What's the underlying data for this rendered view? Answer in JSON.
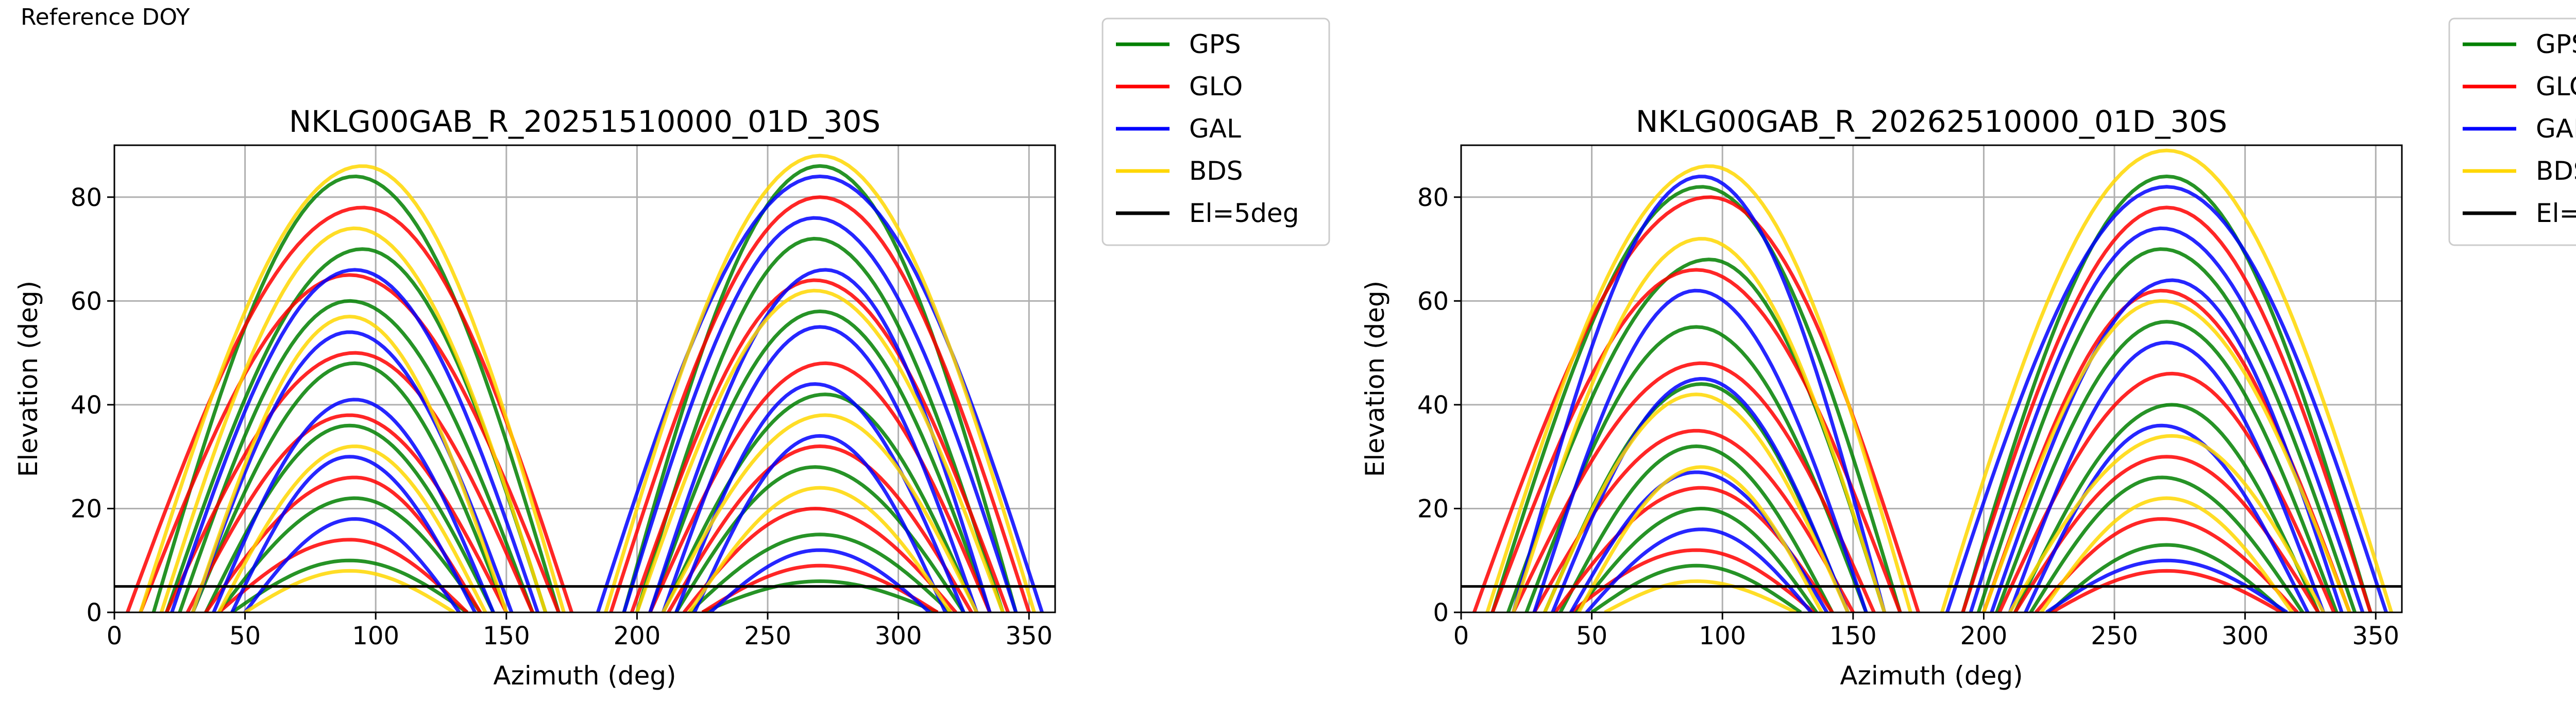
{
  "figure": {
    "note": "Reference DOY"
  },
  "legend": {
    "items": [
      {
        "label": "GPS",
        "color": "#008000"
      },
      {
        "label": "GLO",
        "color": "#ff0000"
      },
      {
        "label": "GAL",
        "color": "#0000ff"
      },
      {
        "label": "BDS",
        "color": "#ffd700"
      },
      {
        "label": "El=5deg",
        "color": "#000000"
      }
    ]
  },
  "chart_data": [
    {
      "type": "line",
      "title": "NKLG00GAB_R_20251510000_01D_30S",
      "xlabel": "Azimuth (deg)",
      "ylabel": "Elevation (deg)",
      "xlim": [
        0,
        360
      ],
      "ylim": [
        0,
        90
      ],
      "xticks": [
        0,
        50,
        100,
        150,
        200,
        250,
        300,
        350
      ],
      "yticks": [
        0,
        20,
        40,
        60,
        80
      ],
      "grid": true,
      "legend_position": "outside-right-top",
      "reference_line": {
        "name": "El=5deg",
        "y": 5
      },
      "series": [
        {
          "name": "GPS",
          "color": "#008000",
          "arcs": [
            {
              "az0": 15,
              "az1": 170,
              "peak_az": 92,
              "peak_el": 84
            },
            {
              "az0": 20,
              "az1": 165,
              "peak_az": 95,
              "peak_el": 70
            },
            {
              "az0": 25,
              "az1": 160,
              "peak_az": 90,
              "peak_el": 60
            },
            {
              "az0": 30,
              "az1": 150,
              "peak_az": 92,
              "peak_el": 48
            },
            {
              "az0": 35,
              "az1": 145,
              "peak_az": 90,
              "peak_el": 36
            },
            {
              "az0": 40,
              "az1": 140,
              "peak_az": 92,
              "peak_el": 22
            },
            {
              "az0": 45,
              "az1": 135,
              "peak_az": 90,
              "peak_el": 10
            },
            {
              "az0": 195,
              "az1": 345,
              "peak_az": 270,
              "peak_el": 86
            },
            {
              "az0": 200,
              "az1": 340,
              "peak_az": 268,
              "peak_el": 72
            },
            {
              "az0": 205,
              "az1": 335,
              "peak_az": 270,
              "peak_el": 58
            },
            {
              "az0": 210,
              "az1": 330,
              "peak_az": 272,
              "peak_el": 42
            },
            {
              "az0": 215,
              "az1": 325,
              "peak_az": 268,
              "peak_el": 28
            },
            {
              "az0": 220,
              "az1": 320,
              "peak_az": 270,
              "peak_el": 15
            },
            {
              "az0": 225,
              "az1": 315,
              "peak_az": 270,
              "peak_el": 6
            }
          ]
        },
        {
          "name": "GLO",
          "color": "#ff0000",
          "arcs": [
            {
              "az0": 5,
              "az1": 175,
              "peak_az": 95,
              "peak_el": 78
            },
            {
              "az0": 10,
              "az1": 170,
              "peak_az": 90,
              "peak_el": 65
            },
            {
              "az0": 20,
              "az1": 160,
              "peak_az": 92,
              "peak_el": 50
            },
            {
              "az0": 28,
              "az1": 150,
              "peak_az": 90,
              "peak_el": 38
            },
            {
              "az0": 35,
              "az1": 140,
              "peak_az": 92,
              "peak_el": 26
            },
            {
              "az0": 40,
              "az1": 135,
              "peak_az": 90,
              "peak_el": 14
            },
            {
              "az0": 190,
              "az1": 350,
              "peak_az": 270,
              "peak_el": 80
            },
            {
              "az0": 198,
              "az1": 342,
              "peak_az": 268,
              "peak_el": 64
            },
            {
              "az0": 205,
              "az1": 335,
              "peak_az": 272,
              "peak_el": 48
            },
            {
              "az0": 212,
              "az1": 328,
              "peak_az": 270,
              "peak_el": 32
            },
            {
              "az0": 218,
              "az1": 322,
              "peak_az": 268,
              "peak_el": 20
            },
            {
              "az0": 225,
              "az1": 315,
              "peak_az": 270,
              "peak_el": 9
            }
          ]
        },
        {
          "name": "GAL",
          "color": "#0000ff",
          "arcs": [
            {
              "az0": 22,
              "az1": 162,
              "peak_az": 92,
              "peak_el": 66
            },
            {
              "az0": 30,
              "az1": 152,
              "peak_az": 90,
              "peak_el": 54
            },
            {
              "az0": 38,
              "az1": 145,
              "peak_az": 92,
              "peak_el": 41
            },
            {
              "az0": 45,
              "az1": 138,
              "peak_az": 90,
              "peak_el": 30
            },
            {
              "az0": 50,
              "az1": 132,
              "peak_az": 92,
              "peak_el": 18
            },
            {
              "az0": 185,
              "az1": 355,
              "peak_az": 270,
              "peak_el": 84
            },
            {
              "az0": 195,
              "az1": 345,
              "peak_az": 268,
              "peak_el": 76
            },
            {
              "az0": 205,
              "az1": 335,
              "peak_az": 272,
              "peak_el": 66
            },
            {
              "az0": 210,
              "az1": 330,
              "peak_az": 270,
              "peak_el": 55
            },
            {
              "az0": 215,
              "az1": 325,
              "peak_az": 268,
              "peak_el": 44
            },
            {
              "az0": 222,
              "az1": 318,
              "peak_az": 270,
              "peak_el": 34
            },
            {
              "az0": 228,
              "az1": 312,
              "peak_az": 270,
              "peak_el": 12
            }
          ]
        },
        {
          "name": "BDS",
          "color": "#ffd700",
          "arcs": [
            {
              "az0": 10,
              "az1": 172,
              "peak_az": 95,
              "peak_el": 86
            },
            {
              "az0": 18,
              "az1": 165,
              "peak_az": 92,
              "peak_el": 74
            },
            {
              "az0": 30,
              "az1": 150,
              "peak_az": 90,
              "peak_el": 57
            },
            {
              "az0": 40,
              "az1": 142,
              "peak_az": 92,
              "peak_el": 32
            },
            {
              "az0": 50,
              "az1": 130,
              "peak_az": 90,
              "peak_el": 8
            },
            {
              "az0": 188,
              "az1": 352,
              "peak_az": 270,
              "peak_el": 88
            },
            {
              "az0": 200,
              "az1": 340,
              "peak_az": 268,
              "peak_el": 62
            },
            {
              "az0": 210,
              "az1": 330,
              "peak_az": 272,
              "peak_el": 38
            },
            {
              "az0": 220,
              "az1": 320,
              "peak_az": 270,
              "peak_el": 24
            }
          ]
        }
      ]
    },
    {
      "type": "line",
      "title": "NKLG00GAB_R_20262510000_01D_30S",
      "xlabel": "Azimuth (deg)",
      "ylabel": "Elevation (deg)",
      "xlim": [
        0,
        360
      ],
      "ylim": [
        0,
        90
      ],
      "xticks": [
        0,
        50,
        100,
        150,
        200,
        250,
        300,
        350
      ],
      "yticks": [
        0,
        20,
        40,
        60,
        80
      ],
      "grid": true,
      "legend_position": "outside-right-top",
      "reference_line": {
        "name": "El=5deg",
        "y": 5
      },
      "series": [
        {
          "name": "GPS",
          "color": "#008000",
          "arcs": [
            {
              "az0": 12,
              "az1": 168,
              "peak_az": 92,
              "peak_el": 82
            },
            {
              "az0": 18,
              "az1": 162,
              "peak_az": 95,
              "peak_el": 68
            },
            {
              "az0": 25,
              "az1": 155,
              "peak_az": 90,
              "peak_el": 55
            },
            {
              "az0": 32,
              "az1": 148,
              "peak_az": 92,
              "peak_el": 44
            },
            {
              "az0": 38,
              "az1": 142,
              "peak_az": 90,
              "peak_el": 32
            },
            {
              "az0": 44,
              "az1": 136,
              "peak_az": 92,
              "peak_el": 20
            },
            {
              "az0": 50,
              "az1": 130,
              "peak_az": 90,
              "peak_el": 9
            },
            {
              "az0": 192,
              "az1": 348,
              "peak_az": 270,
              "peak_el": 84
            },
            {
              "az0": 198,
              "az1": 342,
              "peak_az": 268,
              "peak_el": 70
            },
            {
              "az0": 205,
              "az1": 335,
              "peak_az": 270,
              "peak_el": 56
            },
            {
              "az0": 212,
              "az1": 328,
              "peak_az": 272,
              "peak_el": 40
            },
            {
              "az0": 218,
              "az1": 322,
              "peak_az": 268,
              "peak_el": 26
            },
            {
              "az0": 225,
              "az1": 315,
              "peak_az": 270,
              "peak_el": 13
            }
          ]
        },
        {
          "name": "GLO",
          "color": "#ff0000",
          "arcs": [
            {
              "az0": 5,
              "az1": 175,
              "peak_az": 95,
              "peak_el": 80
            },
            {
              "az0": 12,
              "az1": 168,
              "peak_az": 90,
              "peak_el": 66
            },
            {
              "az0": 20,
              "az1": 158,
              "peak_az": 92,
              "peak_el": 48
            },
            {
              "az0": 28,
              "az1": 150,
              "peak_az": 90,
              "peak_el": 35
            },
            {
              "az0": 36,
              "az1": 142,
              "peak_az": 92,
              "peak_el": 24
            },
            {
              "az0": 42,
              "az1": 135,
              "peak_az": 90,
              "peak_el": 12
            },
            {
              "az0": 192,
              "az1": 348,
              "peak_az": 270,
              "peak_el": 78
            },
            {
              "az0": 200,
              "az1": 340,
              "peak_az": 268,
              "peak_el": 62
            },
            {
              "az0": 206,
              "az1": 334,
              "peak_az": 272,
              "peak_el": 46
            },
            {
              "az0": 212,
              "az1": 328,
              "peak_az": 270,
              "peak_el": 30
            },
            {
              "az0": 220,
              "az1": 320,
              "peak_az": 268,
              "peak_el": 18
            },
            {
              "az0": 226,
              "az1": 314,
              "peak_az": 270,
              "peak_el": 8
            }
          ]
        },
        {
          "name": "GAL",
          "color": "#0000ff",
          "arcs": [
            {
              "az0": 20,
              "az1": 162,
              "peak_az": 92,
              "peak_el": 84
            },
            {
              "az0": 28,
              "az1": 155,
              "peak_az": 90,
              "peak_el": 62
            },
            {
              "az0": 35,
              "az1": 148,
              "peak_az": 92,
              "peak_el": 45
            },
            {
              "az0": 42,
              "az1": 140,
              "peak_az": 90,
              "peak_el": 27
            },
            {
              "az0": 48,
              "az1": 134,
              "peak_az": 92,
              "peak_el": 16
            },
            {
              "az0": 186,
              "az1": 354,
              "peak_az": 270,
              "peak_el": 82
            },
            {
              "az0": 195,
              "az1": 345,
              "peak_az": 268,
              "peak_el": 74
            },
            {
              "az0": 203,
              "az1": 337,
              "peak_az": 272,
              "peak_el": 64
            },
            {
              "az0": 210,
              "az1": 330,
              "peak_az": 270,
              "peak_el": 52
            },
            {
              "az0": 216,
              "az1": 324,
              "peak_az": 268,
              "peak_el": 36
            },
            {
              "az0": 224,
              "az1": 316,
              "peak_az": 270,
              "peak_el": 10
            }
          ]
        },
        {
          "name": "BDS",
          "color": "#ffd700",
          "arcs": [
            {
              "az0": 10,
              "az1": 172,
              "peak_az": 95,
              "peak_el": 86
            },
            {
              "az0": 20,
              "az1": 162,
              "peak_az": 92,
              "peak_el": 72
            },
            {
              "az0": 32,
              "az1": 148,
              "peak_az": 90,
              "peak_el": 42
            },
            {
              "az0": 45,
              "az1": 138,
              "peak_az": 92,
              "peak_el": 28
            },
            {
              "az0": 55,
              "az1": 128,
              "peak_az": 90,
              "peak_el": 6
            },
            {
              "az0": 184,
              "az1": 356,
              "peak_az": 270,
              "peak_el": 89
            },
            {
              "az0": 200,
              "az1": 340,
              "peak_az": 268,
              "peak_el": 60
            },
            {
              "az0": 210,
              "az1": 330,
              "peak_az": 272,
              "peak_el": 34
            },
            {
              "az0": 222,
              "az1": 318,
              "peak_az": 270,
              "peak_el": 22
            }
          ]
        }
      ]
    }
  ]
}
